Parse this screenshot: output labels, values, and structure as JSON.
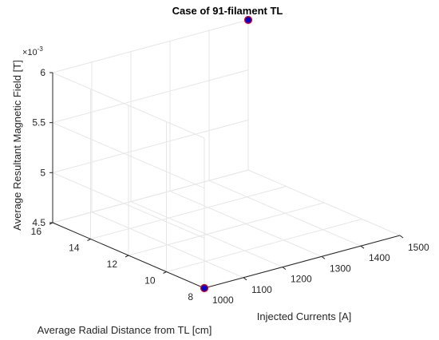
{
  "chart_data": {
    "type": "scatter",
    "title": "Case of 91-filament TL",
    "xlabel": "Injected Currents [A]",
    "ylabel": "Average Radial Distance from TL [cm]",
    "zlabel": "Average Resultant Magnetic Field [T]",
    "z_exponent_label": "×10",
    "z_exponent_power": "-3",
    "xlim": [
      1000,
      1500
    ],
    "ylim": [
      8,
      16
    ],
    "zlim": [
      0.0045,
      0.006
    ],
    "x_ticks": [
      1000,
      1100,
      1200,
      1300,
      1400,
      1500
    ],
    "y_ticks": [
      8,
      10,
      12,
      14,
      16
    ],
    "z_ticks": [
      4.5,
      5,
      5.5,
      6
    ],
    "grid": true,
    "marker": {
      "face_color": "#0000cc",
      "edge_color": "#ff0000"
    },
    "points": [
      {
        "x": 1000,
        "y": 8,
        "z": 0.0045
      },
      {
        "x": 1500,
        "y": 16,
        "z": 0.006
      }
    ]
  }
}
